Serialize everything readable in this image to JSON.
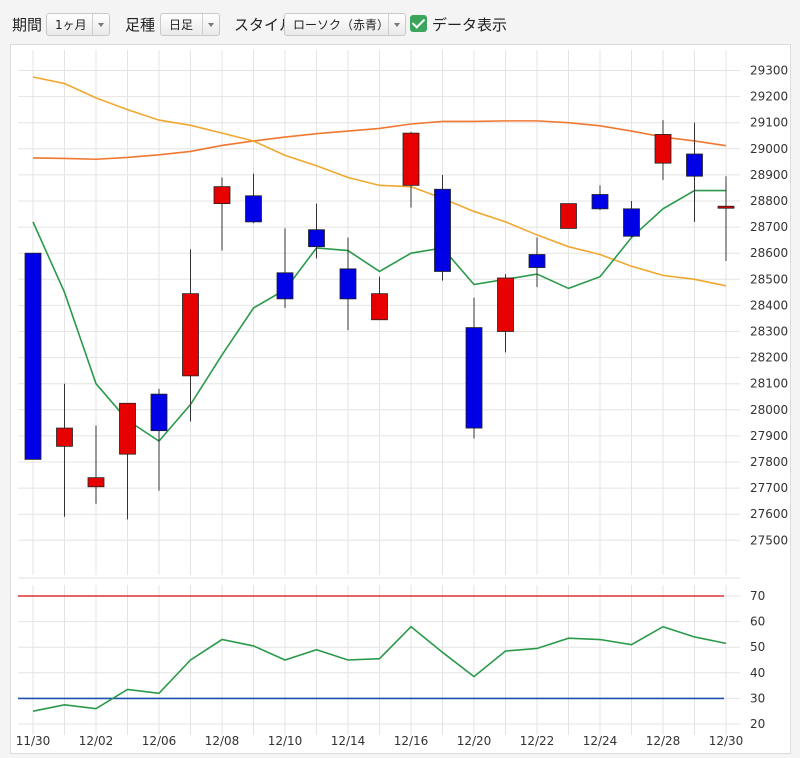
{
  "toolbar": {
    "period_label": "期間",
    "period_value": "1ヶ月",
    "ashi_label": "足種",
    "ashi_value": "日足",
    "style_label": "スタイル",
    "style_value": "ローソク（赤青）",
    "data_label": "データ表示",
    "data_checked": true
  },
  "chart_data": [
    {
      "type": "candlestick",
      "ylim": [
        27400,
        29350
      ],
      "y_ticks": [
        27500,
        27600,
        27700,
        27800,
        27900,
        28000,
        28100,
        28200,
        28300,
        28400,
        28500,
        28600,
        28700,
        28800,
        28900,
        29000,
        29100,
        29200,
        29300
      ],
      "x_tick_labels": [
        {
          "i": 0,
          "label": "11/30"
        },
        {
          "i": 2,
          "label": "12/02"
        },
        {
          "i": 4,
          "label": "12/06"
        },
        {
          "i": 6,
          "label": "12/08"
        },
        {
          "i": 8,
          "label": "12/10"
        },
        {
          "i": 10,
          "label": "12/14"
        },
        {
          "i": 12,
          "label": "12/16"
        },
        {
          "i": 14,
          "label": "12/20"
        },
        {
          "i": 16,
          "label": "12/22"
        },
        {
          "i": 18,
          "label": "12/24"
        },
        {
          "i": 20,
          "label": "12/28"
        },
        {
          "i": 22,
          "label": "12/30"
        }
      ],
      "up_color": "#e60000",
      "down_color": "#0000e6",
      "candles": [
        {
          "o": 28600,
          "h": 28600,
          "l": 27810,
          "c": 27810
        },
        {
          "o": 27860,
          "h": 28100,
          "l": 27590,
          "c": 27930
        },
        {
          "o": 27705,
          "h": 27940,
          "l": 27640,
          "c": 27740
        },
        {
          "o": 27830,
          "h": 28025,
          "l": 27580,
          "c": 28025
        },
        {
          "o": 28060,
          "h": 28080,
          "l": 27690,
          "c": 27920
        },
        {
          "o": 28130,
          "h": 28615,
          "l": 27955,
          "c": 28445
        },
        {
          "o": 28790,
          "h": 28890,
          "l": 28610,
          "c": 28855
        },
        {
          "o": 28820,
          "h": 28905,
          "l": 28715,
          "c": 28720
        },
        {
          "o": 28525,
          "h": 28695,
          "l": 28390,
          "c": 28425
        },
        {
          "o": 28690,
          "h": 28790,
          "l": 28580,
          "c": 28625
        },
        {
          "o": 28540,
          "h": 28660,
          "l": 28305,
          "c": 28425
        },
        {
          "o": 28345,
          "h": 28510,
          "l": 28345,
          "c": 28445
        },
        {
          "o": 28860,
          "h": 29065,
          "l": 28775,
          "c": 29060
        },
        {
          "o": 28845,
          "h": 28900,
          "l": 28495,
          "c": 28530
        },
        {
          "o": 28315,
          "h": 28430,
          "l": 27890,
          "c": 27930
        },
        {
          "o": 28300,
          "h": 28520,
          "l": 28220,
          "c": 28505
        },
        {
          "o": 28595,
          "h": 28660,
          "l": 28470,
          "c": 28545
        },
        {
          "o": 28695,
          "h": 28790,
          "l": 28695,
          "c": 28790
        },
        {
          "o": 28825,
          "h": 28860,
          "l": 28765,
          "c": 28770
        },
        {
          "o": 28770,
          "h": 28800,
          "l": 28660,
          "c": 28665
        },
        {
          "o": 28945,
          "h": 29110,
          "l": 28880,
          "c": 29055
        },
        {
          "o": 28980,
          "h": 29100,
          "l": 28720,
          "c": 28895
        },
        {
          "o": 28780,
          "h": 28895,
          "l": 28570,
          "c": 28780
        }
      ],
      "ma_short": {
        "color": "#2a9a4a",
        "values": [
          28720,
          28450,
          28100,
          27960,
          27880,
          28020,
          28210,
          28390,
          28460,
          28620,
          28610,
          28530,
          28600,
          28620,
          28480,
          28500,
          28520,
          28465,
          28510,
          28660,
          28770,
          28840,
          28840
        ]
      },
      "ma_mid": {
        "color": "#f0a830",
        "values": [
          29275,
          29250,
          29195,
          29150,
          29110,
          29090,
          29060,
          29030,
          28975,
          28935,
          28890,
          28860,
          28855,
          28810,
          28760,
          28720,
          28670,
          28625,
          28595,
          28550,
          28515,
          28500,
          28475
        ]
      },
      "ma_long": {
        "color": "#f07830",
        "values": [
          28965,
          28963,
          28960,
          28967,
          28977,
          28990,
          29013,
          29030,
          29045,
          29058,
          29068,
          29078,
          29095,
          29105,
          29105,
          29107,
          29107,
          29100,
          29088,
          29068,
          29045,
          29030,
          29012
        ]
      }
    },
    {
      "type": "line",
      "ylim": [
        20,
        75
      ],
      "y_ticks": [
        20,
        30,
        40,
        50,
        60,
        70
      ],
      "upper_line": {
        "value": 70,
        "color": "#e03030"
      },
      "lower_line": {
        "value": 30,
        "color": "#2050b0"
      },
      "series_color": "#2a9a4a",
      "values": [
        25,
        27.5,
        26,
        33.5,
        32,
        45,
        53,
        50.5,
        45,
        49,
        45,
        45.5,
        58,
        48,
        38.5,
        48.5,
        49.5,
        53.5,
        53,
        51,
        58,
        54,
        51.5
      ]
    }
  ]
}
